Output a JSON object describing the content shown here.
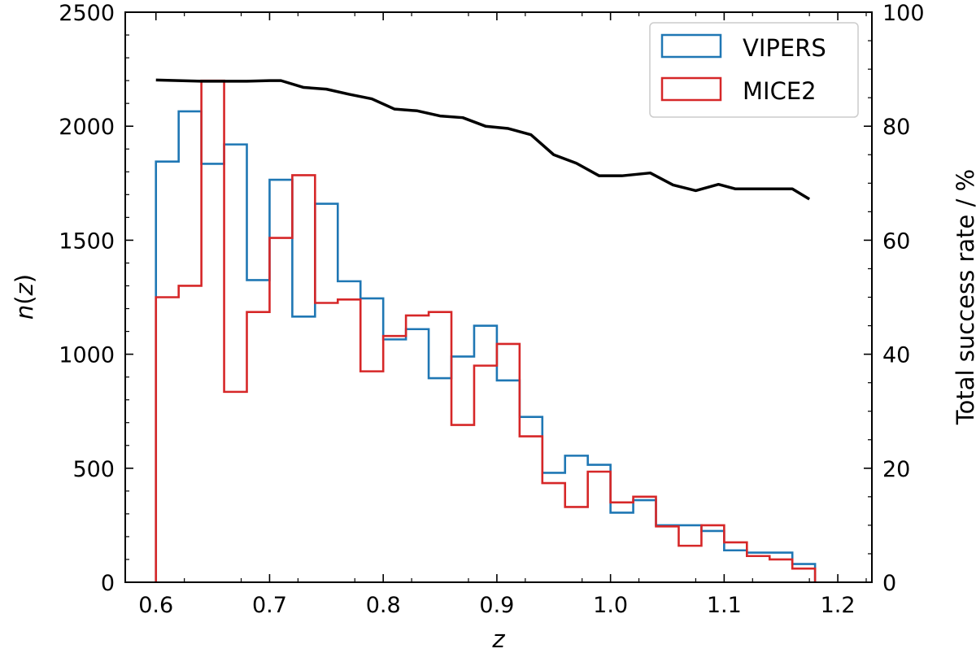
{
  "chart_data": {
    "type": "step-histogram-with-line",
    "title": "",
    "xlabel": "z",
    "ylabel": "n(z)",
    "y2label": "Total success rate / %",
    "xlim": [
      0.573,
      1.23
    ],
    "ylim": [
      0,
      2500
    ],
    "y2lim": [
      0,
      100
    ],
    "xticks": [
      0.6,
      0.7,
      0.8,
      0.9,
      1.0,
      1.1,
      1.2
    ],
    "xtick_labels": [
      "0.6",
      "0.7",
      "0.8",
      "0.9",
      "1.0",
      "1.1",
      "1.2"
    ],
    "yticks": [
      0,
      500,
      1000,
      1500,
      2000,
      2500
    ],
    "ytick_labels": [
      "0",
      "500",
      "1000",
      "1500",
      "2000",
      "2500"
    ],
    "y2ticks": [
      0,
      20,
      40,
      60,
      80,
      100
    ],
    "y2tick_labels": [
      "0",
      "20",
      "40",
      "60",
      "80",
      "100"
    ],
    "bin_edges": [
      0.6,
      0.62,
      0.64,
      0.66,
      0.68,
      0.7,
      0.72,
      0.74,
      0.76,
      0.78,
      0.8,
      0.82,
      0.84,
      0.86,
      0.88,
      0.9,
      0.92,
      0.94,
      0.96,
      0.98,
      1.0,
      1.02,
      1.04,
      1.06,
      1.08,
      1.1,
      1.12,
      1.14,
      1.16,
      1.18
    ],
    "legend_position": "upper-right",
    "series": [
      {
        "name": "VIPERS",
        "kind": "step",
        "color": "#1f77b4",
        "values": [
          1845,
          2065,
          1835,
          1920,
          1325,
          1765,
          1165,
          1660,
          1320,
          1245,
          1065,
          1110,
          895,
          990,
          1125,
          885,
          725,
          480,
          555,
          515,
          305,
          360,
          250,
          250,
          225,
          140,
          130,
          130,
          80
        ]
      },
      {
        "name": "MICE2",
        "kind": "step",
        "color": "#d62728",
        "values": [
          1250,
          1300,
          2200,
          835,
          1185,
          1510,
          1785,
          1225,
          1240,
          925,
          1080,
          1170,
          1185,
          690,
          950,
          1045,
          640,
          435,
          330,
          485,
          350,
          375,
          245,
          160,
          250,
          175,
          115,
          100,
          60
        ]
      },
      {
        "name": "Total success rate",
        "kind": "line",
        "axis": "right",
        "color": "#000000",
        "x": [
          0.6,
          0.62,
          0.64,
          0.66,
          0.68,
          0.7,
          0.71,
          0.73,
          0.75,
          0.77,
          0.79,
          0.81,
          0.83,
          0.85,
          0.87,
          0.89,
          0.91,
          0.93,
          0.95,
          0.97,
          0.99,
          1.01,
          1.035,
          1.055,
          1.075,
          1.095,
          1.11,
          1.135,
          1.16,
          1.175
        ],
        "values": [
          88.1,
          88.0,
          87.9,
          87.9,
          87.9,
          88.0,
          88.0,
          86.8,
          86.5,
          85.6,
          84.8,
          83.0,
          82.7,
          81.8,
          81.5,
          80.0,
          79.6,
          78.5,
          75.0,
          73.5,
          71.3,
          71.3,
          71.8,
          69.7,
          68.7,
          69.8,
          69.0,
          69.0,
          69.0,
          67.2
        ]
      }
    ]
  }
}
